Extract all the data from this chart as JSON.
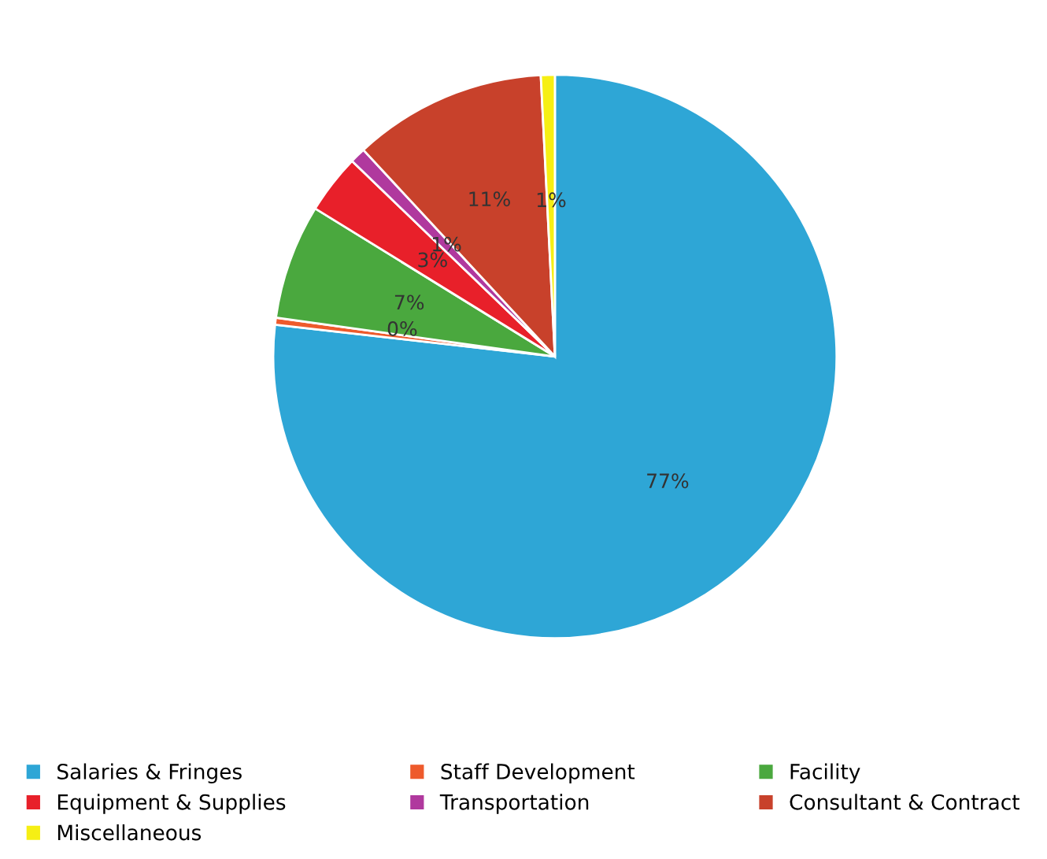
{
  "chart_data": {
    "type": "pie",
    "categories": [
      "Salaries & Fringes",
      "Staff Development",
      "Facility",
      "Equipment & Supplies",
      "Transportation",
      "Consultant & Contract",
      "Miscellaneous"
    ],
    "values": [
      76.8,
      0.4,
      6.6,
      3.4,
      0.9,
      11.1,
      0.8
    ],
    "value_labels": [
      "77%",
      "0%",
      "7%",
      "3%",
      "1%",
      "11%",
      "1%"
    ],
    "colors": [
      "#2ea6d6",
      "#ee5a2c",
      "#4aa83e",
      "#e8202a",
      "#b0399e",
      "#c8412b",
      "#f6ef14"
    ],
    "legend": "bottom"
  }
}
